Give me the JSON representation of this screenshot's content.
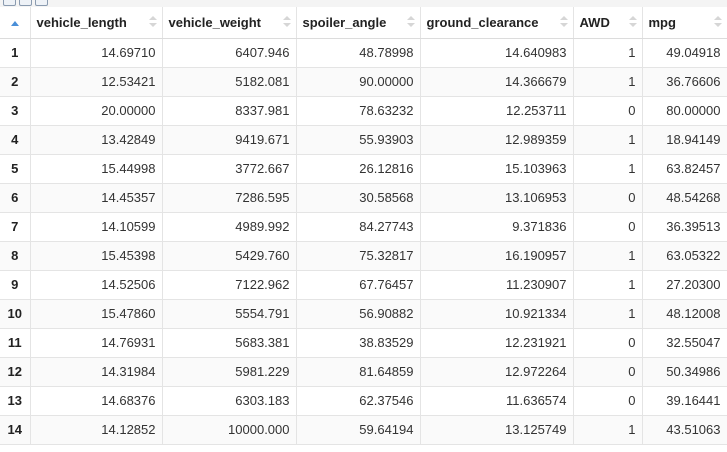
{
  "colors": {
    "sort_active": "#4a8fd8",
    "sort_inactive": "#d6d6d6",
    "grid_line": "#e4e4e4"
  },
  "sort": {
    "column": "row-index",
    "direction": "ascending",
    "icon": "sort-ascending-icon"
  },
  "table": {
    "columns": [
      "vehicle_length",
      "vehicle_weight",
      "spoiler_angle",
      "ground_clearance",
      "AWD",
      "mpg"
    ],
    "rows": [
      {
        "n": "1",
        "vehicle_length": "14.69710",
        "vehicle_weight": "6407.946",
        "spoiler_angle": "48.78998",
        "ground_clearance": "14.640983",
        "AWD": "1",
        "mpg": "49.04918"
      },
      {
        "n": "2",
        "vehicle_length": "12.53421",
        "vehicle_weight": "5182.081",
        "spoiler_angle": "90.00000",
        "ground_clearance": "14.366679",
        "AWD": "1",
        "mpg": "36.76606"
      },
      {
        "n": "3",
        "vehicle_length": "20.00000",
        "vehicle_weight": "8337.981",
        "spoiler_angle": "78.63232",
        "ground_clearance": "12.253711",
        "AWD": "0",
        "mpg": "80.00000"
      },
      {
        "n": "4",
        "vehicle_length": "13.42849",
        "vehicle_weight": "9419.671",
        "spoiler_angle": "55.93903",
        "ground_clearance": "12.989359",
        "AWD": "1",
        "mpg": "18.94149"
      },
      {
        "n": "5",
        "vehicle_length": "15.44998",
        "vehicle_weight": "3772.667",
        "spoiler_angle": "26.12816",
        "ground_clearance": "15.103963",
        "AWD": "1",
        "mpg": "63.82457"
      },
      {
        "n": "6",
        "vehicle_length": "14.45357",
        "vehicle_weight": "7286.595",
        "spoiler_angle": "30.58568",
        "ground_clearance": "13.106953",
        "AWD": "0",
        "mpg": "48.54268"
      },
      {
        "n": "7",
        "vehicle_length": "14.10599",
        "vehicle_weight": "4989.992",
        "spoiler_angle": "84.27743",
        "ground_clearance": "9.371836",
        "AWD": "0",
        "mpg": "36.39513"
      },
      {
        "n": "8",
        "vehicle_length": "15.45398",
        "vehicle_weight": "5429.760",
        "spoiler_angle": "75.32817",
        "ground_clearance": "16.190957",
        "AWD": "1",
        "mpg": "63.05322"
      },
      {
        "n": "9",
        "vehicle_length": "14.52506",
        "vehicle_weight": "7122.962",
        "spoiler_angle": "67.76457",
        "ground_clearance": "11.230907",
        "AWD": "1",
        "mpg": "27.20300"
      },
      {
        "n": "10",
        "vehicle_length": "15.47860",
        "vehicle_weight": "5554.791",
        "spoiler_angle": "56.90882",
        "ground_clearance": "10.921334",
        "AWD": "1",
        "mpg": "48.12008"
      },
      {
        "n": "11",
        "vehicle_length": "14.76931",
        "vehicle_weight": "5683.381",
        "spoiler_angle": "38.83529",
        "ground_clearance": "12.231921",
        "AWD": "0",
        "mpg": "32.55047"
      },
      {
        "n": "12",
        "vehicle_length": "14.31984",
        "vehicle_weight": "5981.229",
        "spoiler_angle": "81.64859",
        "ground_clearance": "12.972264",
        "AWD": "0",
        "mpg": "50.34986"
      },
      {
        "n": "13",
        "vehicle_length": "14.68376",
        "vehicle_weight": "6303.183",
        "spoiler_angle": "62.37546",
        "ground_clearance": "11.636574",
        "AWD": "0",
        "mpg": "39.16441"
      },
      {
        "n": "14",
        "vehicle_length": "14.12852",
        "vehicle_weight": "10000.000",
        "spoiler_angle": "59.64194",
        "ground_clearance": "13.125749",
        "AWD": "1",
        "mpg": "43.51063"
      }
    ]
  }
}
